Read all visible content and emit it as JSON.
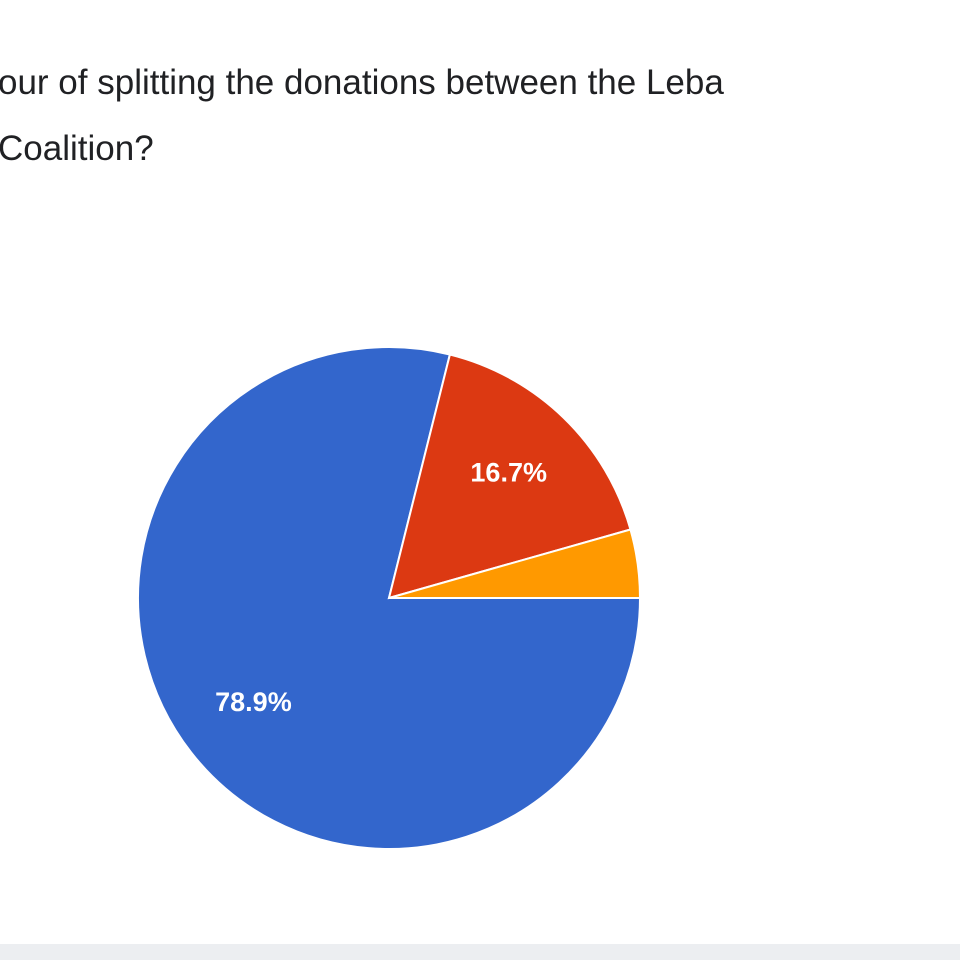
{
  "chart_data": {
    "type": "pie",
    "title_lines": [
      "our of splitting the donations between the Leba",
      "Coalition?"
    ],
    "values": [
      78.9,
      16.7,
      4.4
    ],
    "value_labels": [
      "78.9%",
      "16.7%",
      null
    ],
    "colors": [
      "#3366cc",
      "#dc3912",
      "#ff9900"
    ]
  }
}
